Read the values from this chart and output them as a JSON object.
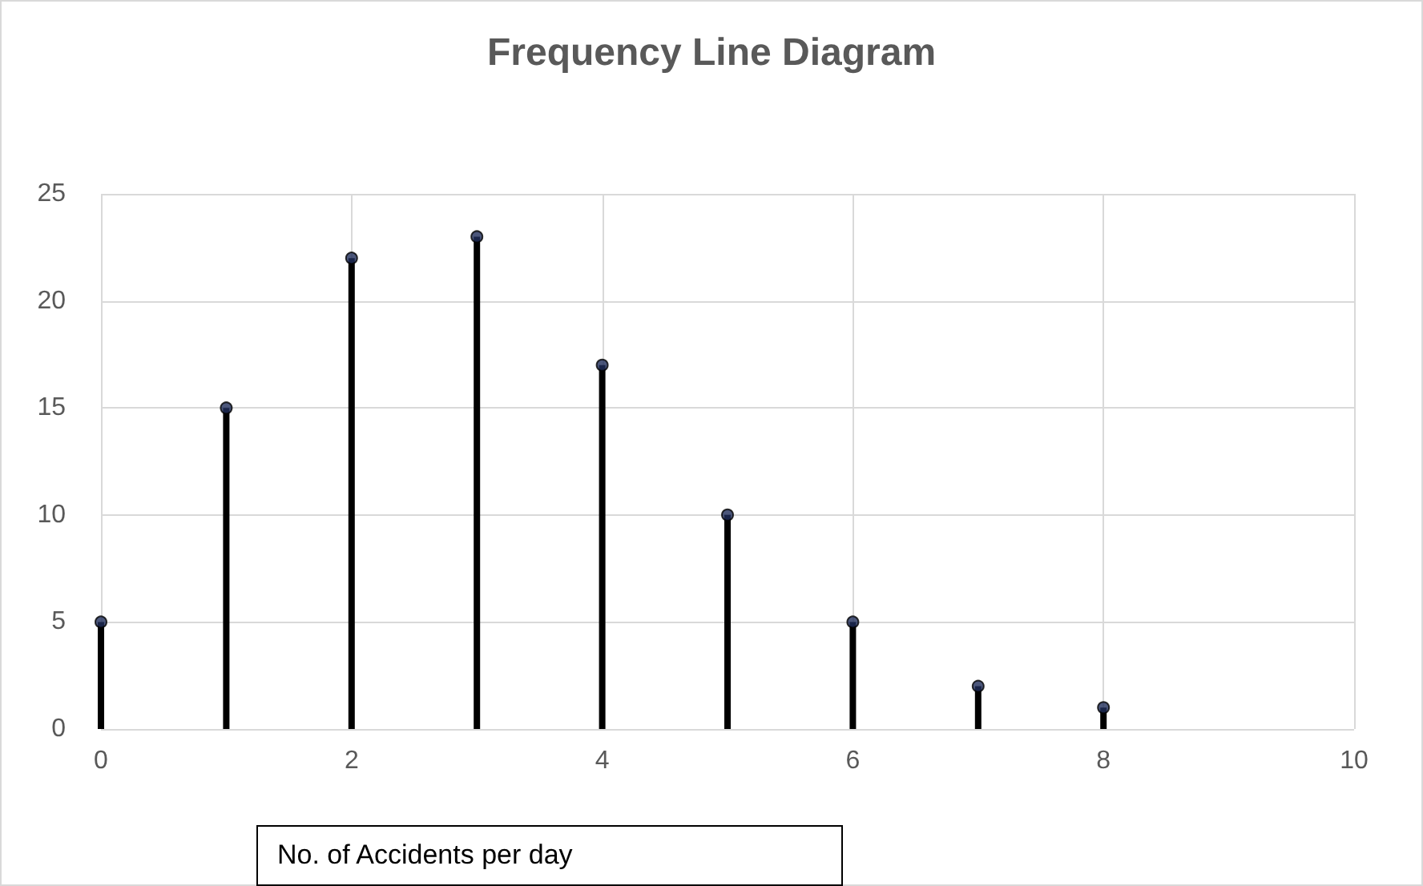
{
  "chart_data": {
    "type": "lollipop",
    "title": "Frequency Line Diagram",
    "xlabel": "No. of Accidents per day",
    "x": [
      0,
      1,
      2,
      3,
      4,
      5,
      6,
      7,
      8
    ],
    "series": [
      {
        "color": "#000000",
        "values": [
          5,
          15,
          22,
          23,
          17,
          10,
          5,
          2,
          1
        ]
      }
    ],
    "xlim": [
      0,
      10
    ],
    "xticks": [
      0,
      2,
      4,
      6,
      8,
      10
    ],
    "ylim": [
      0,
      25
    ],
    "yticks": [
      0,
      5,
      10,
      15,
      20,
      25
    ],
    "grid": true,
    "marker": "circle"
  }
}
